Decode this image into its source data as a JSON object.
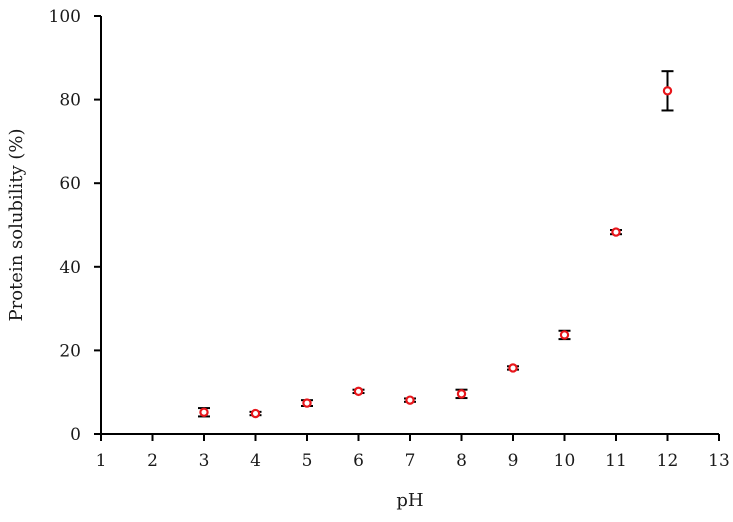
{
  "chart_data": {
    "type": "scatter",
    "title": "",
    "xlabel": "pH",
    "ylabel": "Protein solubility (%)",
    "xlim": [
      1,
      13
    ],
    "ylim": [
      0,
      100
    ],
    "x_ticks": [
      1,
      2,
      3,
      4,
      5,
      6,
      7,
      8,
      9,
      10,
      11,
      12,
      13
    ],
    "y_ticks": [
      0,
      20,
      40,
      60,
      80,
      100
    ],
    "grid": false,
    "legend": null,
    "series": [
      {
        "name": "Protein solubility",
        "marker": "open-circle",
        "color": "#e8161b",
        "error_bar_color": "#000000",
        "x": [
          3,
          4,
          5,
          6,
          7,
          8,
          9,
          10,
          11,
          12
        ],
        "y": [
          5.2,
          4.9,
          7.4,
          10.2,
          8.1,
          9.6,
          15.8,
          23.7,
          48.3,
          82.1
        ],
        "error": [
          1.0,
          0.4,
          0.7,
          0.4,
          0.4,
          1.0,
          0.4,
          1.0,
          0.5,
          4.7
        ]
      }
    ]
  }
}
